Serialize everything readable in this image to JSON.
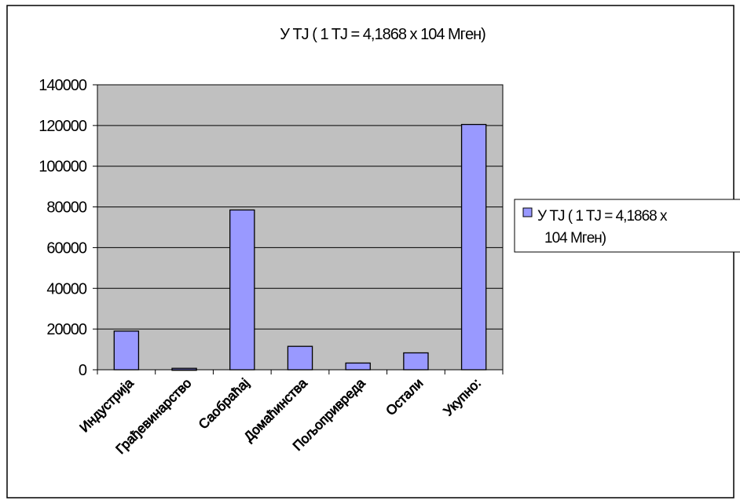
{
  "chart_data": {
    "type": "bar",
    "title": "У TJ ( 1 TJ = 4,1868 x 104 Mгeн)",
    "categories": [
      "Индустрија",
      "Грађевинарство",
      "Саобраћај",
      "Домаћинства",
      "Пољопривреда",
      "Остали",
      "Укупно:"
    ],
    "series": [
      {
        "name": "У TJ ( 1 TJ = 4,1868 x 104 Mгeн)",
        "values": [
          19000,
          700,
          78500,
          11500,
          3300,
          8300,
          120500
        ]
      }
    ],
    "yticks": [
      "0",
      "20000",
      "40000",
      "60000",
      "80000",
      "100000",
      "120000",
      "140000"
    ],
    "ylim": [
      0,
      140000
    ],
    "grid": true,
    "legend": "right",
    "colors": {
      "bar_fill": "#9999ff",
      "plot_bg": "#c0c0c0",
      "border": "#000000"
    }
  }
}
